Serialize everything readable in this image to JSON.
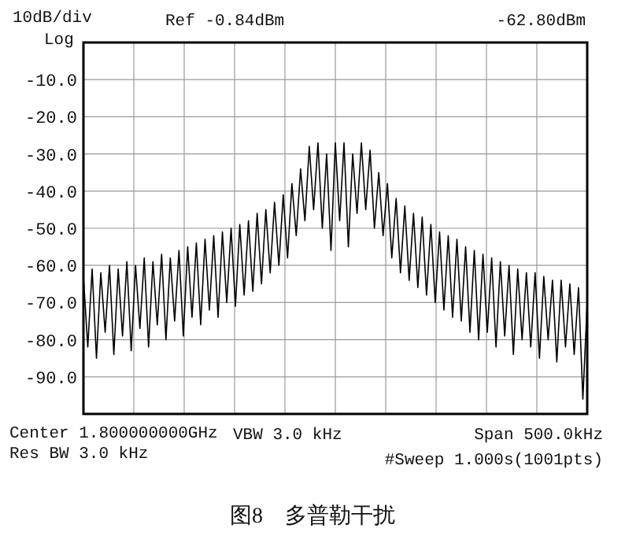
{
  "chart_data": {
    "type": "line",
    "title": "图8　多普勒干扰",
    "annotations": [
      "10dB/div",
      "Log",
      "Ref -0.84dBm",
      "-62.80dBm",
      "Center 1.800000000GHz",
      "VBW 3.0 kHz",
      "Span 500.0kHz",
      "Res BW 3.0 kHz",
      "#Sweep 1.000s(1001pts)"
    ],
    "categories": [
      null,
      null,
      null,
      null,
      null,
      null,
      null,
      null,
      null,
      null,
      null,
      null,
      null,
      null,
      null,
      null,
      null,
      null,
      null,
      null,
      null,
      null,
      null,
      null,
      null,
      null,
      null,
      null,
      null,
      null,
      null,
      null,
      null,
      null,
      null,
      null,
      null,
      null,
      null,
      null,
      null,
      null,
      null,
      null,
      null,
      null,
      null,
      null,
      null,
      null,
      null,
      null,
      null,
      null,
      null,
      null,
      null,
      null,
      null,
      null,
      null,
      null,
      null,
      null,
      null,
      null,
      null,
      null,
      null,
      null,
      null,
      null,
      null,
      null,
      null,
      null,
      null,
      null,
      null,
      null,
      null,
      null,
      null,
      null,
      null,
      null,
      null,
      null,
      null,
      null,
      null,
      null,
      null,
      null,
      null,
      null,
      null,
      null,
      null,
      null,
      null,
      null,
      null,
      null,
      null,
      null,
      null,
      null,
      null,
      null,
      null,
      null,
      null,
      null,
      null,
      null,
      null
    ],
    "values": [
      -63,
      -82,
      -61,
      -85,
      -62,
      -78,
      -60,
      -84,
      -61,
      -79,
      -59,
      -83,
      -60,
      -77,
      -58,
      -82,
      -59,
      -76,
      -57,
      -80,
      -58,
      -75,
      -56,
      -79,
      -55,
      -74,
      -54,
      -76,
      -53,
      -72,
      -52,
      -74,
      -51,
      -70,
      -50,
      -71,
      -49,
      -68,
      -48,
      -67,
      -46,
      -65,
      -45,
      -62,
      -43,
      -60,
      -41,
      -58,
      -38,
      -52,
      -34,
      -48,
      -28,
      -45,
      -27,
      -50,
      -30,
      -56,
      -27,
      -48,
      -27,
      -55,
      -30,
      -46,
      -27,
      -45,
      -29,
      -50,
      -35,
      -52,
      -38,
      -58,
      -42,
      -62,
      -44,
      -64,
      -46,
      -66,
      -47,
      -68,
      -49,
      -70,
      -51,
      -72,
      -52,
      -74,
      -53,
      -75,
      -55,
      -78,
      -56,
      -80,
      -57,
      -78,
      -58,
      -82,
      -59,
      -79,
      -60,
      -84,
      -61,
      -80,
      -62,
      -82,
      -62,
      -85,
      -63,
      -80,
      -64,
      -86,
      -64,
      -82,
      -65,
      -84,
      -66,
      -96,
      -70
    ],
    "color": "#000000",
    "ylim": [
      -100,
      0
    ],
    "yticks": [
      {
        "value": -10,
        "label": "-10.0"
      },
      {
        "value": -20,
        "label": "-20.0"
      },
      {
        "value": -30,
        "label": "-30.0"
      },
      {
        "value": -40,
        "label": "-40.0"
      },
      {
        "value": -50,
        "label": "-50.0"
      },
      {
        "value": -60,
        "label": "-60.0"
      },
      {
        "value": -70,
        "label": "-70.0"
      },
      {
        "value": -80,
        "label": "-80.0"
      },
      {
        "value": -90,
        "label": "-90.0"
      }
    ],
    "grid": true,
    "tick_labels": "y"
  }
}
